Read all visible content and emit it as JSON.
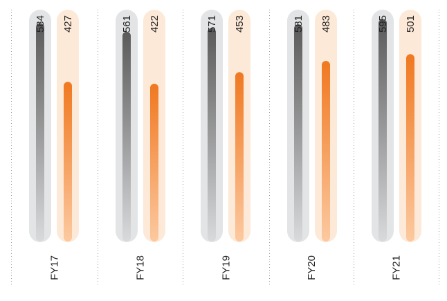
{
  "chart_data": {
    "type": "bar",
    "categories": [
      "FY17",
      "FY18",
      "FY19",
      "FY20",
      "FY21"
    ],
    "series": [
      {
        "values": [
          584,
          561,
          571,
          581,
          595
        ],
        "color": "#5f5f5f",
        "track_color": "#e3e4e6"
      },
      {
        "values": [
          427,
          422,
          453,
          483,
          501
        ],
        "color": "#f07820",
        "track_color": "#fde9d8"
      }
    ],
    "title": "",
    "xlabel": "",
    "ylabel": "",
    "ylim": [
      0,
      620
    ],
    "grid": false,
    "legend": "none",
    "bar_orientation": "vertical",
    "label_orientation": "rotated"
  }
}
